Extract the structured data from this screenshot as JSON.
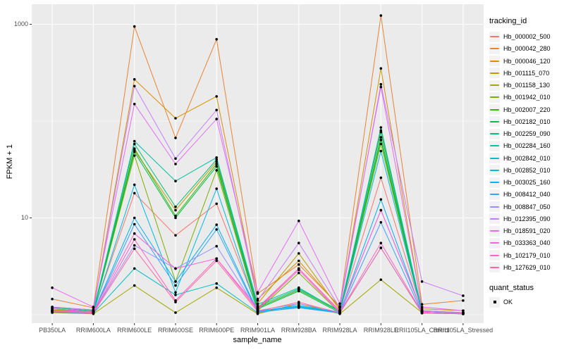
{
  "colors": {
    "figure_bg": "#FFFFFF",
    "panel_bg": "#EBEBEB",
    "grid": "#FFFFFF",
    "tick_text": "#4D4D4D",
    "axis_text": "#000000",
    "point": "#000000"
  },
  "legend": {
    "tracking_title": "tracking_id",
    "quant_title": "quant_status",
    "quant_items": [
      {
        "label": "OK"
      }
    ]
  },
  "chart_data": {
    "type": "line",
    "title": "",
    "xlabel": "sample_name",
    "ylabel": "FPKM + 1",
    "y_scale": "log10",
    "ylim": [
      0.85,
      1600
    ],
    "grid": true,
    "legend_position": "right",
    "point_marker": "black dot on every value (quant_status = OK)",
    "y_ticks": [
      {
        "label": "1000",
        "value": 1000
      },
      {
        "label": "10",
        "value": 10
      }
    ],
    "y_minor_gridlines": [
      1,
      100
    ],
    "categories": [
      "PB350LA",
      "RRIM600LA",
      "RRIM600LE",
      "RRIM600SE",
      "RRIM600PE",
      "RRIM901LA",
      "RRIM928BA",
      "RRIM928LA",
      "RRIM928LE",
      "RRII105LA_Control",
      "RRII105LA_Stressed"
    ],
    "series": [
      {
        "name": "Hb_000002_500",
        "color": "#F8766D",
        "values": [
          1.1,
          1.08,
          18,
          6.6,
          14,
          1.15,
          3.0,
          1.1,
          26,
          1.1,
          1.05
        ]
      },
      {
        "name": "Hb_000042_280",
        "color": "#EA8331",
        "values": [
          1.45,
          1.18,
          950,
          67,
          700,
          1.65,
          3.3,
          1.22,
          1230,
          1.28,
          1.4
        ]
      },
      {
        "name": "Hb_000046_120",
        "color": "#D89000",
        "values": [
          1.2,
          1.12,
          270,
          107,
          180,
          1.45,
          3.6,
          1.18,
          350,
          1.15,
          1.1
        ]
      },
      {
        "name": "Hb_001115_070",
        "color": "#C09B00",
        "values": [
          1.12,
          1.08,
          50,
          12,
          38,
          1.3,
          4.3,
          1.12,
          80,
          1.1,
          1.05
        ]
      },
      {
        "name": "Hb_001158_130",
        "color": "#A3A500",
        "values": [
          1.05,
          1.02,
          2.0,
          1.05,
          1.9,
          1.02,
          1.3,
          1.02,
          2.3,
          1.05,
          1.02
        ]
      },
      {
        "name": "Hb_001942_010",
        "color": "#7CAE00",
        "values": [
          1.1,
          1.05,
          44,
          2.2,
          31,
          1.1,
          2.7,
          1.05,
          58,
          1.05,
          1.02
        ]
      },
      {
        "name": "Hb_002007_220",
        "color": "#39B600",
        "values": [
          1.15,
          1.08,
          52,
          10.5,
          36,
          1.18,
          1.8,
          1.08,
          68,
          1.08,
          1.04
        ]
      },
      {
        "name": "Hb_002182_010",
        "color": "#00BB4E",
        "values": [
          1.1,
          1.05,
          48,
          10.0,
          34,
          1.15,
          1.75,
          1.05,
          64,
          1.05,
          1.02
        ]
      },
      {
        "name": "Hb_002259_090",
        "color": "#00BF7D",
        "values": [
          1.18,
          1.1,
          58,
          13,
          40,
          1.22,
          1.85,
          1.1,
          77,
          1.08,
          1.05
        ]
      },
      {
        "name": "Hb_002284_160",
        "color": "#00C1A3",
        "values": [
          1.15,
          1.08,
          62,
          24,
          42,
          1.28,
          1.9,
          1.08,
          86,
          1.08,
          1.04
        ]
      },
      {
        "name": "Hb_002842_010",
        "color": "#00BFC4",
        "values": [
          1.08,
          1.04,
          3.0,
          1.6,
          2.1,
          1.05,
          1.2,
          1.04,
          4.9,
          1.04,
          1.02
        ]
      },
      {
        "name": "Hb_002852_010",
        "color": "#00BAE0",
        "values": [
          1.08,
          1.05,
          22,
          1.7,
          20,
          1.08,
          1.25,
          1.05,
          49,
          1.05,
          1.02
        ]
      },
      {
        "name": "Hb_003025_160",
        "color": "#00B0F6",
        "values": [
          1.08,
          1.05,
          10,
          2.2,
          8.5,
          1.08,
          1.22,
          1.05,
          15.5,
          1.05,
          1.02
        ]
      },
      {
        "name": "Hb_008412_040",
        "color": "#35A2FF",
        "values": [
          1.06,
          1.04,
          8.6,
          2.0,
          7.6,
          1.06,
          1.18,
          1.04,
          9.0,
          1.04,
          1.02
        ]
      },
      {
        "name": "Hb_008847_050",
        "color": "#9590FF",
        "values": [
          1.1,
          1.06,
          5.2,
          3.0,
          5.1,
          1.1,
          1.3,
          1.06,
          12,
          1.1,
          1.05
        ]
      },
      {
        "name": "Hb_012395_090",
        "color": "#C77CFF",
        "values": [
          1.2,
          1.12,
          230,
          41,
          130,
          1.4,
          5.5,
          1.18,
          240,
          2.2,
          1.57
        ]
      },
      {
        "name": "Hb_018591_020",
        "color": "#E76BF3",
        "values": [
          1.9,
          1.2,
          150,
          36,
          105,
          1.7,
          9.3,
          1.3,
          225,
          1.2,
          1.1
        ]
      },
      {
        "name": "Hb_033363_040",
        "color": "#FA62DB",
        "values": [
          1.15,
          1.08,
          6.9,
          3.0,
          3.8,
          1.18,
          3.0,
          1.08,
          12,
          1.08,
          1.04
        ]
      },
      {
        "name": "Hb_102179_010",
        "color": "#FF61C9",
        "values": [
          1.1,
          1.05,
          6.0,
          1.4,
          3.8,
          1.12,
          2.9,
          1.05,
          5.5,
          1.05,
          1.02
        ]
      },
      {
        "name": "Hb_127629_010",
        "color": "#FF67A4",
        "values": [
          1.08,
          1.04,
          4.8,
          1.35,
          3.6,
          1.08,
          1.35,
          1.04,
          4.9,
          1.04,
          1.02
        ]
      }
    ]
  }
}
